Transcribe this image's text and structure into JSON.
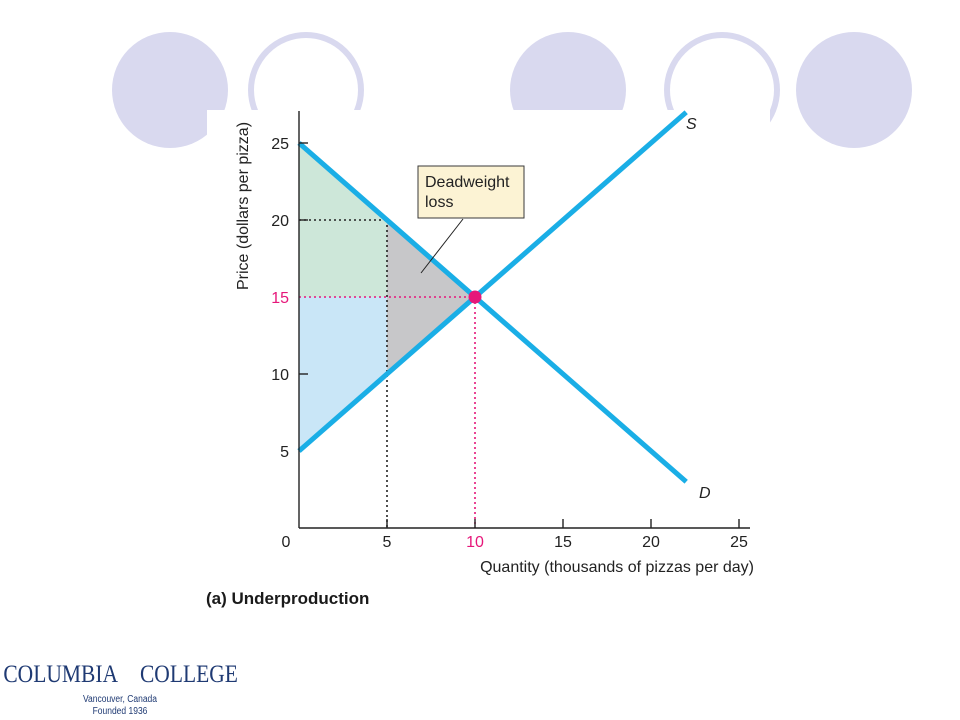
{
  "caption": "(a) Underproduction",
  "logo": {
    "left_word": "COLUMBIA",
    "right_word": "COLLEGE",
    "line1": "Vancouver, Canada",
    "line2": "Founded 1936",
    "color": "#1f3a73"
  },
  "decorations": {
    "circle_fill": "#d9d9ef",
    "ring_stroke": "#d9d9ef"
  },
  "chart_data": {
    "type": "line",
    "title": "",
    "xlabel": "Quantity (thousands of pizzas per day)",
    "ylabel": "Price (dollars per pizza)",
    "xlim": [
      0,
      26
    ],
    "ylim": [
      0,
      26
    ],
    "x_ticks": [
      {
        "value": 0,
        "label": "0",
        "highlight": false
      },
      {
        "value": 5,
        "label": "5",
        "highlight": false
      },
      {
        "value": 10,
        "label": "10",
        "highlight": true
      },
      {
        "value": 15,
        "label": "15",
        "highlight": false
      },
      {
        "value": 20,
        "label": "20",
        "highlight": false
      },
      {
        "value": 25,
        "label": "25",
        "highlight": false
      }
    ],
    "y_ticks": [
      {
        "value": 5,
        "label": "5",
        "highlight": false
      },
      {
        "value": 10,
        "label": "10",
        "highlight": false
      },
      {
        "value": 15,
        "label": "15",
        "highlight": true
      },
      {
        "value": 20,
        "label": "20",
        "highlight": false
      },
      {
        "value": 25,
        "label": "25",
        "highlight": false
      }
    ],
    "series": [
      {
        "name": "S",
        "role": "supply",
        "points": [
          [
            0,
            5
          ],
          [
            22,
            27
          ]
        ],
        "color": "#1aaee6"
      },
      {
        "name": "D",
        "role": "demand",
        "points": [
          [
            0,
            25
          ],
          [
            22,
            3
          ]
        ],
        "color": "#1aaee6"
      }
    ],
    "equilibrium": {
      "x": 10,
      "y": 15,
      "color": "#e6177a"
    },
    "output": {
      "x": 5,
      "demand_price": 20,
      "supply_price": 10
    },
    "areas": [
      {
        "role": "consumer-surplus",
        "polygon": [
          [
            0,
            25
          ],
          [
            5,
            20
          ],
          [
            5,
            15
          ],
          [
            0,
            15
          ]
        ],
        "color": "#cde7d9"
      },
      {
        "role": "producer-surplus",
        "polygon": [
          [
            0,
            5
          ],
          [
            5,
            10
          ],
          [
            5,
            15
          ],
          [
            0,
            15
          ]
        ],
        "color": "#c9e6f7"
      },
      {
        "role": "deadweight-loss",
        "polygon": [
          [
            5,
            20
          ],
          [
            10,
            15
          ],
          [
            5,
            10
          ]
        ],
        "color": "#c7c7c9"
      }
    ],
    "annotation": {
      "lines": [
        "Deadweight",
        "loss"
      ],
      "fill": "#fcf3d4",
      "stroke": "#3a3a3a"
    },
    "highlight_color": "#e6177a",
    "axis_color": "#222222",
    "grid": false
  }
}
